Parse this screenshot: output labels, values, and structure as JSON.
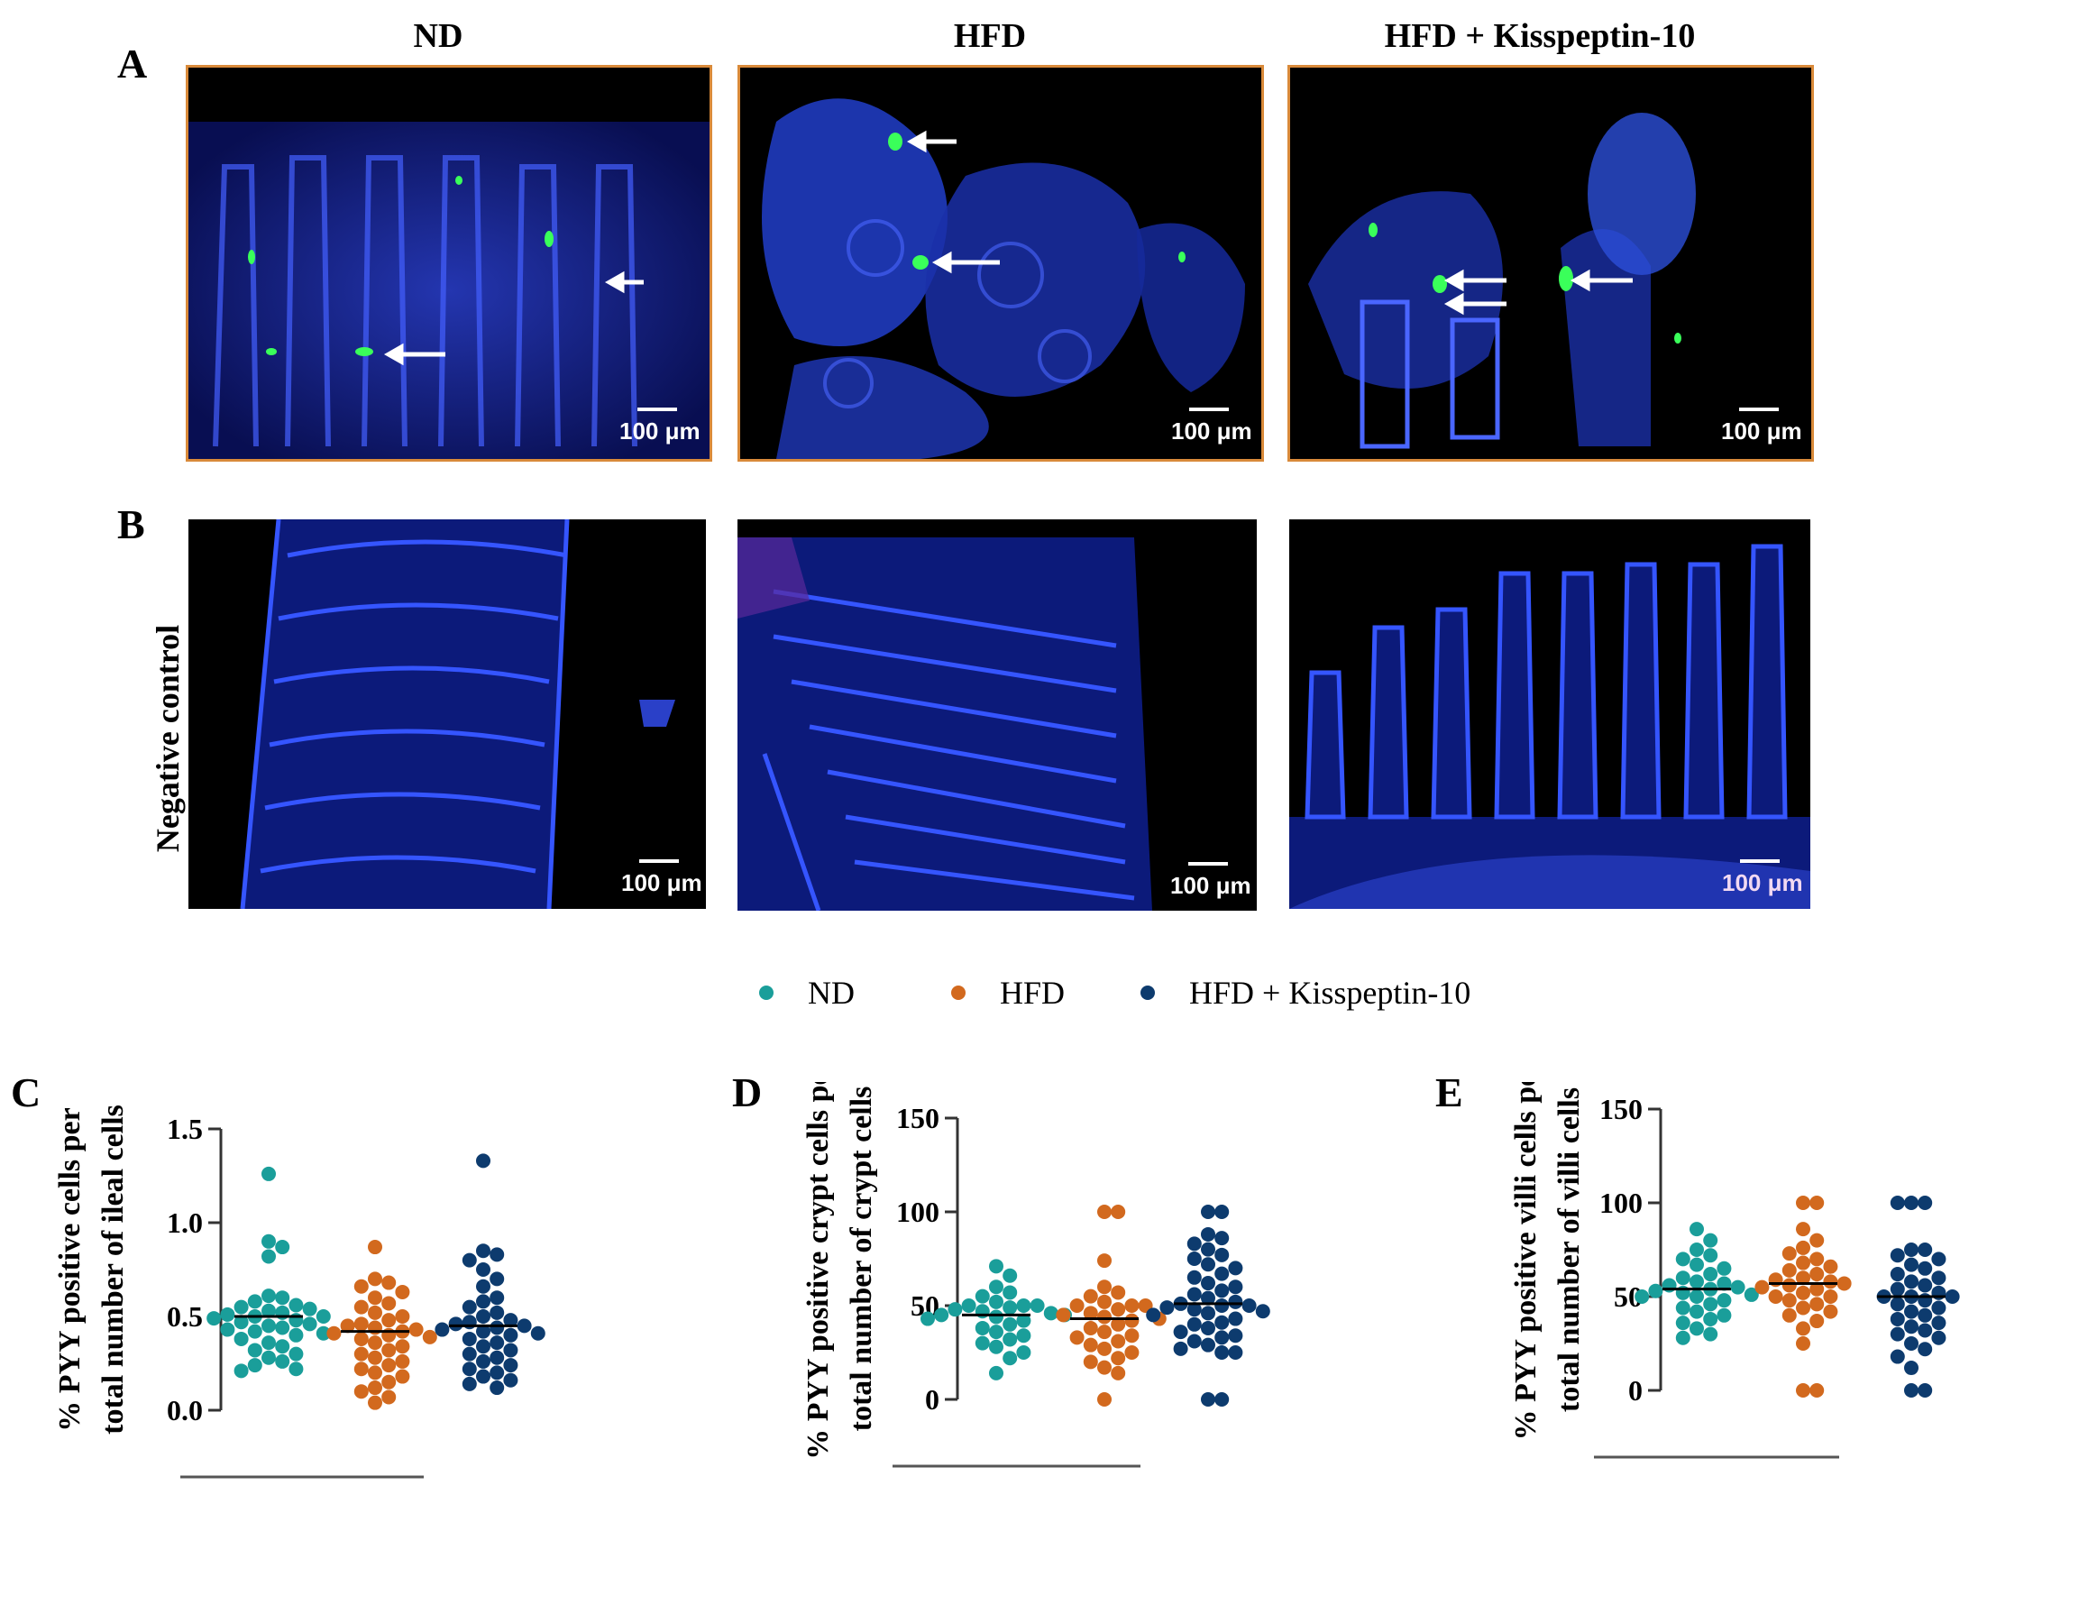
{
  "columns": [
    "ND",
    "HFD",
    "HFD + Kisspeptin-10"
  ],
  "panels": {
    "A": "A",
    "B": "B",
    "C": "C",
    "D": "D",
    "E": "E"
  },
  "row_b_label": "Negative control",
  "scale_label": "100 μm",
  "colors": {
    "nd": "#1a9e9a",
    "hfd": "#d2691e",
    "kiss": "#0d3b6e",
    "frame": "#d98a3a"
  },
  "legend": [
    {
      "label": "ND",
      "color": "#1a9e9a"
    },
    {
      "label": "HFD",
      "color": "#d2691e"
    },
    {
      "label": "HFD + Kisspeptin-10",
      "color": "#0d3b6e"
    }
  ],
  "chart_data": [
    {
      "panel": "C",
      "type": "scatter",
      "ylabel": "% PYY positive cells per total number of ileal cells",
      "ylabel_lines": [
        "% PYY positive cells per",
        "total number of ileal cells"
      ],
      "ylim": [
        0,
        1.5
      ],
      "yticks": [
        0.0,
        0.5,
        1.0,
        1.5
      ],
      "ytick_labels": [
        "0.0",
        "0.5",
        "1.0",
        "1.5"
      ],
      "series": [
        {
          "name": "ND",
          "mean": 0.5,
          "values": [
            1.26,
            0.9,
            0.87,
            0.82,
            0.61,
            0.6,
            0.58,
            0.56,
            0.55,
            0.54,
            0.53,
            0.52,
            0.51,
            0.5,
            0.5,
            0.49,
            0.48,
            0.47,
            0.46,
            0.45,
            0.44,
            0.43,
            0.42,
            0.41,
            0.4,
            0.38,
            0.36,
            0.34,
            0.32,
            0.3,
            0.28,
            0.26,
            0.24,
            0.22,
            0.21
          ]
        },
        {
          "name": "HFD",
          "mean": 0.42,
          "values": [
            0.87,
            0.7,
            0.68,
            0.66,
            0.63,
            0.6,
            0.57,
            0.55,
            0.52,
            0.5,
            0.48,
            0.46,
            0.45,
            0.44,
            0.43,
            0.42,
            0.41,
            0.4,
            0.39,
            0.38,
            0.36,
            0.34,
            0.32,
            0.3,
            0.28,
            0.26,
            0.24,
            0.22,
            0.2,
            0.18,
            0.15,
            0.12,
            0.1,
            0.07,
            0.04
          ]
        },
        {
          "name": "HFD + Kisspeptin-10",
          "mean": 0.45,
          "values": [
            1.33,
            0.85,
            0.83,
            0.8,
            0.75,
            0.7,
            0.66,
            0.6,
            0.58,
            0.55,
            0.52,
            0.5,
            0.48,
            0.47,
            0.46,
            0.45,
            0.44,
            0.43,
            0.42,
            0.41,
            0.4,
            0.38,
            0.36,
            0.34,
            0.32,
            0.3,
            0.28,
            0.26,
            0.24,
            0.22,
            0.2,
            0.18,
            0.16,
            0.14,
            0.12
          ]
        }
      ]
    },
    {
      "panel": "D",
      "type": "scatter",
      "ylabel": "% PYY positive crypt cells per total number of crypt cells",
      "ylabel_lines": [
        "% PYY positive crypt cells per",
        "total number of crypt cells"
      ],
      "ylim": [
        0,
        150
      ],
      "yticks": [
        0,
        50,
        100,
        150
      ],
      "ytick_labels": [
        "0",
        "50",
        "100",
        "150"
      ],
      "series": [
        {
          "name": "ND",
          "mean": 45,
          "values": [
            71,
            66,
            60,
            57,
            55,
            52,
            50,
            50,
            50,
            49,
            48,
            47,
            46,
            45,
            45,
            44,
            43,
            42,
            40,
            38,
            36,
            34,
            32,
            30,
            28,
            25,
            22,
            14
          ]
        },
        {
          "name": "HFD",
          "mean": 43,
          "values": [
            100,
            100,
            74,
            60,
            57,
            55,
            52,
            50,
            50,
            50,
            48,
            46,
            45,
            44,
            43,
            42,
            40,
            38,
            36,
            34,
            33,
            31,
            29,
            27,
            25,
            22,
            20,
            17,
            14,
            0
          ]
        },
        {
          "name": "HFD + Kisspeptin-10",
          "mean": 51,
          "values": [
            100,
            100,
            88,
            86,
            83,
            80,
            77,
            75,
            72,
            70,
            67,
            65,
            62,
            60,
            58,
            56,
            54,
            52,
            51,
            50,
            50,
            49,
            48,
            47,
            46,
            45,
            43,
            41,
            40,
            38,
            36,
            34,
            33,
            31,
            29,
            27,
            25,
            25,
            0,
            0
          ]
        }
      ]
    },
    {
      "panel": "E",
      "type": "scatter",
      "ylabel": "% PYY positive villi cells per total number of villi cells",
      "ylabel_lines": [
        "% PYY positive villi cells per",
        "total number of villi cells"
      ],
      "ylim": [
        0,
        150
      ],
      "yticks": [
        0,
        50,
        100,
        150
      ],
      "ytick_labels": [
        "0",
        "50",
        "100",
        "150"
      ],
      "series": [
        {
          "name": "ND",
          "mean": 54,
          "values": [
            86,
            80,
            75,
            72,
            70,
            67,
            65,
            62,
            60,
            58,
            57,
            56,
            55,
            54,
            53,
            52,
            51,
            50,
            50,
            48,
            46,
            44,
            42,
            40,
            38,
            36,
            33,
            30,
            28
          ]
        },
        {
          "name": "HFD",
          "mean": 57,
          "values": [
            100,
            100,
            86,
            80,
            76,
            73,
            70,
            68,
            66,
            64,
            62,
            60,
            59,
            58,
            57,
            56,
            55,
            54,
            52,
            50,
            50,
            48,
            46,
            44,
            42,
            40,
            37,
            33,
            25,
            0,
            0
          ]
        },
        {
          "name": "HFD + Kisspeptin-10",
          "mean": 50,
          "values": [
            100,
            100,
            100,
            75,
            75,
            72,
            70,
            67,
            65,
            62,
            60,
            58,
            56,
            54,
            52,
            50,
            50,
            50,
            48,
            46,
            44,
            42,
            40,
            38,
            36,
            34,
            32,
            30,
            28,
            25,
            22,
            18,
            12,
            0,
            0
          ]
        }
      ]
    }
  ]
}
